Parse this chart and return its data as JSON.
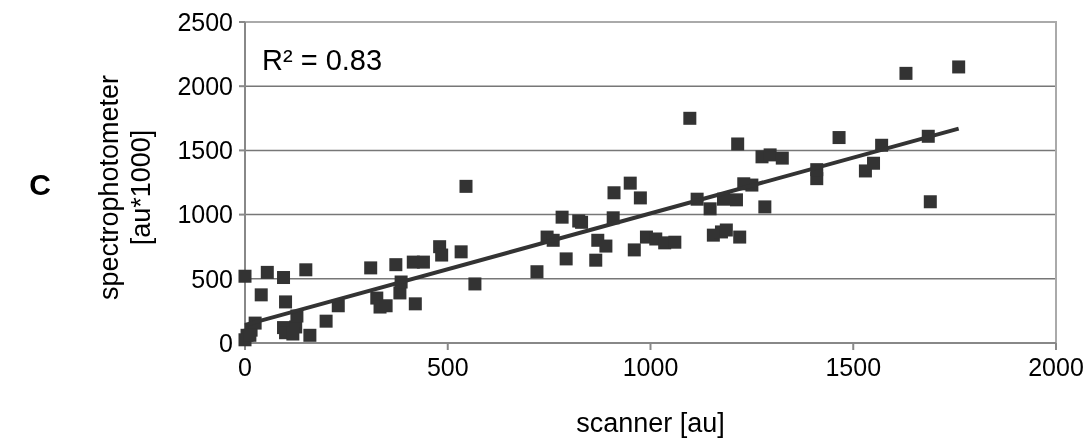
{
  "chart_data": {
    "type": "scatter",
    "xlabel": "scanner [au]",
    "ylabel": "spectrophotometer\n[au*1000]",
    "annotations": [
      "C",
      "R² = 0.83"
    ],
    "xlim": [
      0,
      2000
    ],
    "xticks": [
      0,
      500,
      1000,
      1500,
      2000
    ],
    "ylim": [
      0,
      2500
    ],
    "yticks": [
      0,
      500,
      1000,
      1500,
      2000,
      2500
    ],
    "grid": "y",
    "marker": "square",
    "series": [
      {
        "color": "#333333",
        "x": [
          0,
          5,
          0,
          15,
          25,
          12,
          40,
          55,
          95,
          100,
          95,
          100,
          125,
          128,
          118,
          160,
          150,
          200,
          230,
          310,
          325,
          333,
          348,
          372,
          382,
          385,
          415,
          420,
          440,
          480,
          485,
          533,
          545,
          567,
          720,
          745,
          760,
          782,
          792,
          823,
          830,
          865,
          870,
          890,
          908,
          910,
          950,
          960,
          975,
          990,
          1013,
          1035,
          1060,
          1097,
          1115,
          1147,
          1155,
          1175,
          1180,
          1187,
          1212,
          1215,
          1220,
          1230,
          1250,
          1275,
          1282,
          1295,
          1325,
          1410,
          1410,
          1465,
          1530,
          1550,
          1570,
          1630,
          1685,
          1690,
          1760
        ],
        "values": [
          520,
          60,
          25,
          100,
          155,
          60,
          375,
          550,
          120,
          320,
          510,
          80,
          125,
          210,
          70,
          60,
          570,
          170,
          290,
          585,
          350,
          280,
          290,
          610,
          390,
          475,
          630,
          305,
          630,
          750,
          685,
          710,
          1220,
          460,
          555,
          825,
          800,
          980,
          655,
          950,
          940,
          645,
          800,
          755,
          975,
          1170,
          1245,
          725,
          1130,
          825,
          810,
          780,
          785,
          1750,
          1120,
          1045,
          840,
          865,
          1120,
          880,
          1115,
          1550,
          825,
          1240,
          1230,
          1450,
          1060,
          1465,
          1440,
          1280,
          1350,
          1600,
          1340,
          1400,
          1540,
          2100,
          1610,
          1100,
          2150
        ]
      },
      {
        "type": "line",
        "color": "#333333",
        "marker": "none",
        "line_style": "solid",
        "x": [
          0,
          1760
        ],
        "values": [
          140,
          1670
        ]
      }
    ]
  }
}
